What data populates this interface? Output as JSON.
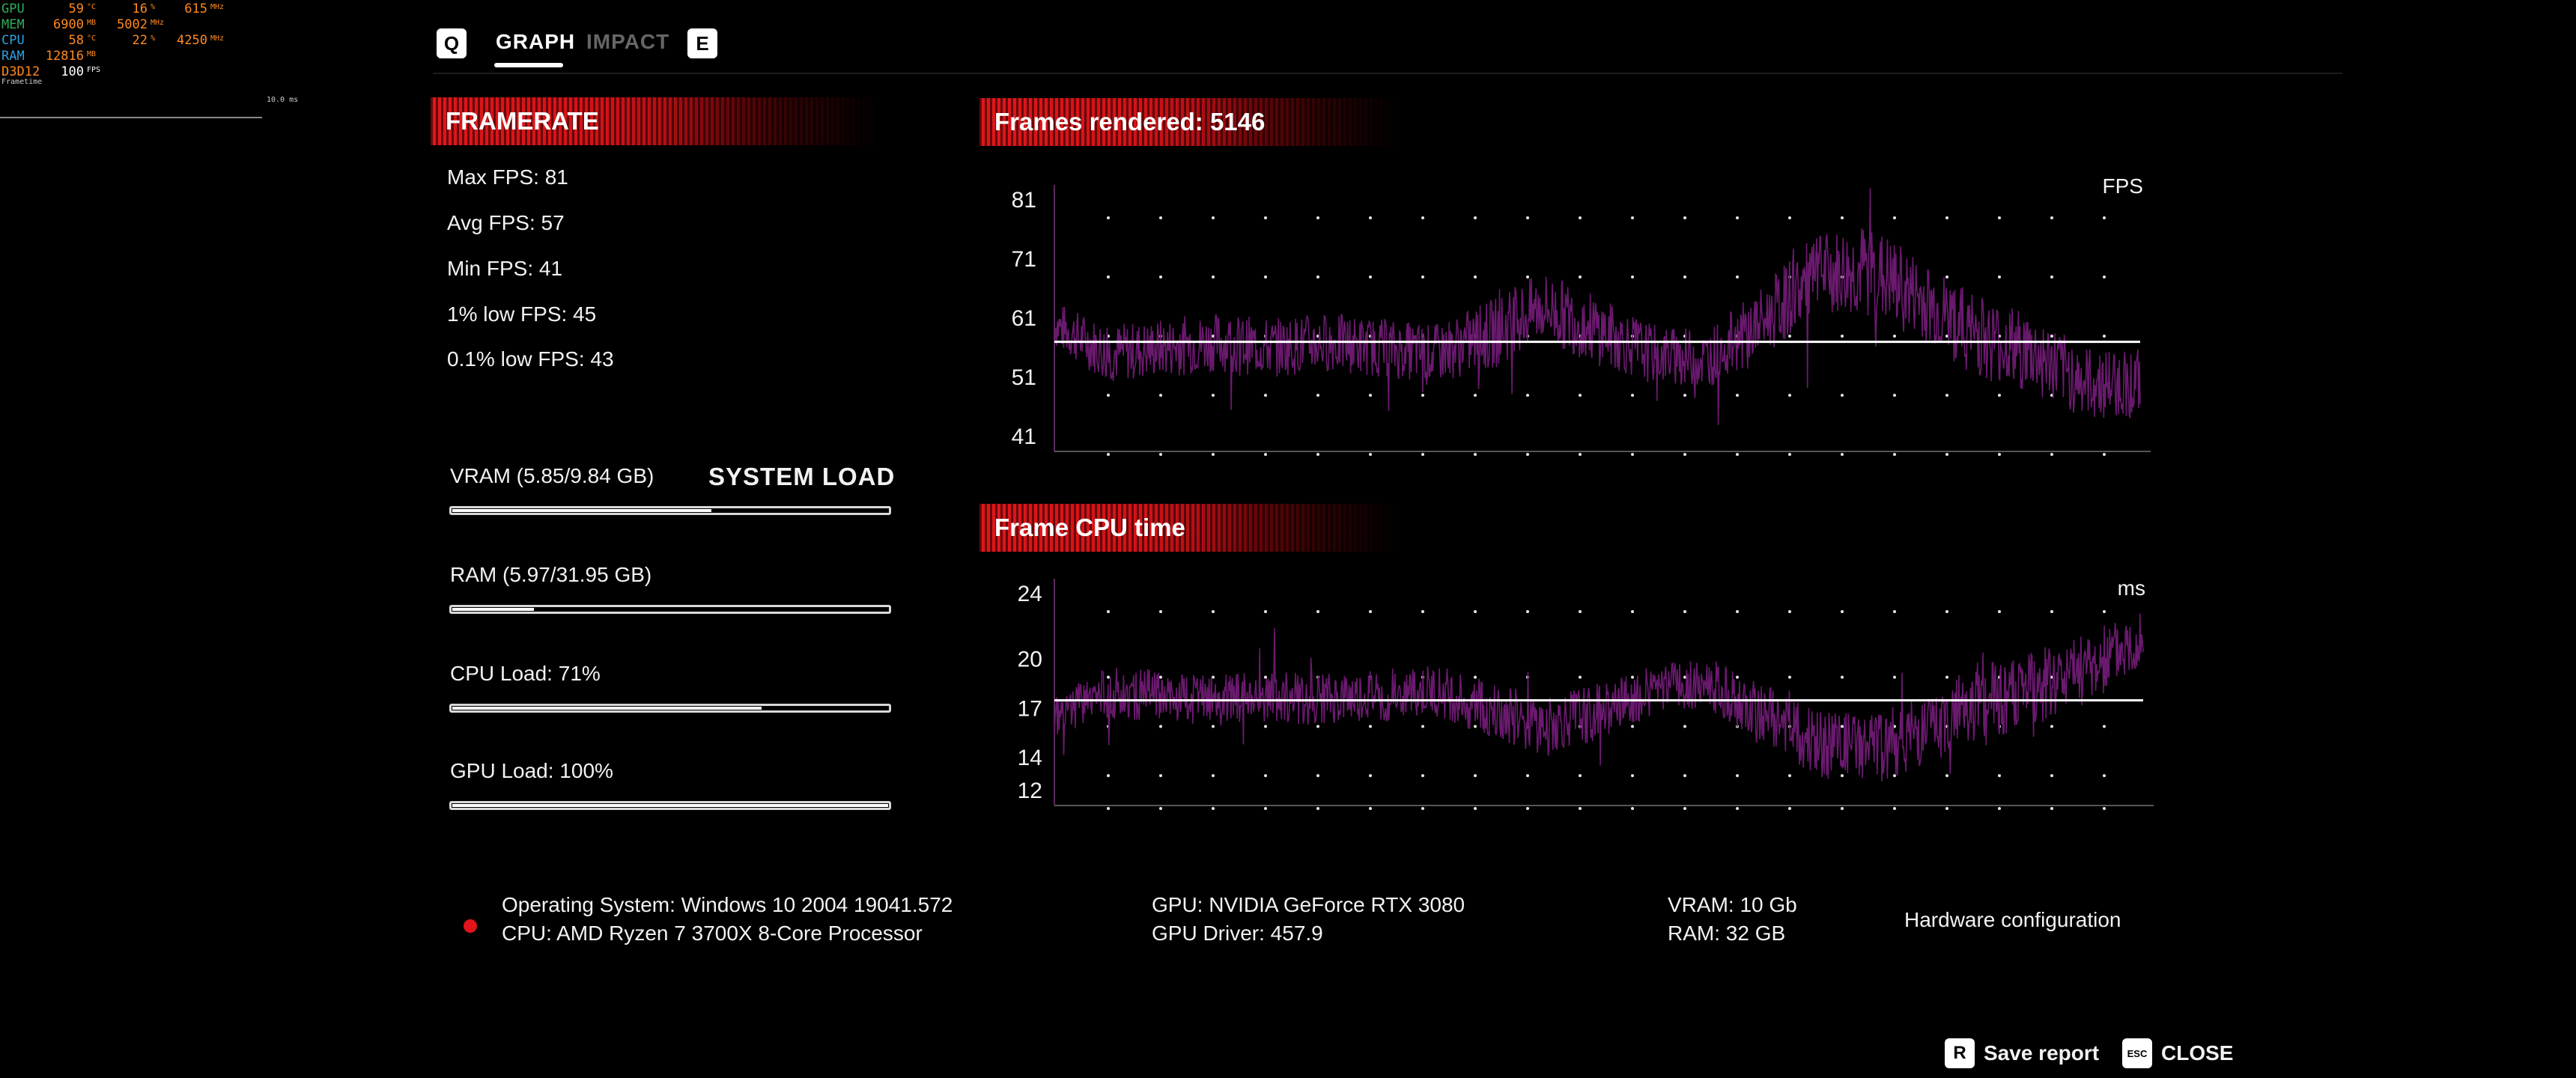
{
  "osd": {
    "rows": [
      {
        "label": "GPU",
        "label_color": "#2fae5c",
        "v1": "59",
        "u1": "°C",
        "v2": "16",
        "u2": "%",
        "v3": "615",
        "u3": "MHz"
      },
      {
        "label": "MEM",
        "label_color": "#2fae5c",
        "v1": "6900",
        "u1": "MB",
        "v2": "5002",
        "u2": "MHz",
        "v3": "",
        "u3": ""
      },
      {
        "label": "CPU",
        "label_color": "#2e9fe0",
        "v1": "58",
        "u1": "°C",
        "v2": "22",
        "u2": "%",
        "v3": "4250",
        "u3": "MHz"
      },
      {
        "label": "RAM",
        "label_color": "#2e9fe0",
        "v1": "12816",
        "u1": "MB",
        "v2": "",
        "u2": "",
        "v3": "",
        "u3": ""
      },
      {
        "label": "D3D12",
        "label_color": "#ff8a1e",
        "v1": "100",
        "u1": "FPS",
        "v2": "",
        "u2": "",
        "v3": "",
        "u3": ""
      }
    ],
    "frametime_label": "Frametime",
    "frametime_scale": "10.0 ms"
  },
  "tabs": {
    "prev_key": "Q",
    "next_key": "E",
    "items": [
      {
        "label": "GRAPH",
        "active": true
      },
      {
        "label": "IMPACT",
        "active": false
      }
    ]
  },
  "framerate": {
    "title": "FRAMERATE",
    "max": "Max FPS: 81",
    "avg": "Avg FPS: 57",
    "min": "Min FPS: 41",
    "low1": "1% low FPS: 45",
    "low01": "0.1% low FPS: 43"
  },
  "system_load": {
    "title": "SYSTEM LOAD",
    "bars": [
      {
        "label": "VRAM (5.85/9.84 GB)",
        "fraction": 0.595
      },
      {
        "label": "RAM (5.97/31.95 GB)",
        "fraction": 0.187
      },
      {
        "label": "CPU Load: 71%",
        "fraction": 0.71
      },
      {
        "label": "GPU Load: 100%",
        "fraction": 1.0
      }
    ]
  },
  "system_info": {
    "os": "Operating System: Windows 10 2004 19041.572",
    "cpu": "CPU: AMD Ryzen 7 3700X 8-Core Processor",
    "gpu": "GPU: NVIDIA GeForce RTX 3080",
    "gpu_driver": "GPU Driver: 457.9",
    "vram": "VRAM: 10 Gb",
    "ram": "RAM: 32 GB",
    "hardware_config": "Hardware configuration"
  },
  "actions": {
    "save_key": "R",
    "save_label": "Save report",
    "close_key": "ESC",
    "close_label": "CLOSE"
  },
  "colors": {
    "accent_red": "#e0161a",
    "plot_purple": "#6a1a6e"
  },
  "chart_data": [
    {
      "type": "line",
      "title": "Frames rendered: 5146",
      "ylabel": "FPS",
      "yticks": [
        81,
        71,
        61,
        51,
        41
      ],
      "ylim": [
        41,
        81
      ],
      "average": 57,
      "grid": "dotted",
      "x": [
        0,
        5,
        10,
        15,
        20,
        25,
        30,
        35,
        40,
        45,
        50,
        55,
        60,
        65,
        70,
        75,
        80,
        85,
        90,
        95,
        100
      ],
      "values": [
        60,
        55,
        56,
        57,
        56,
        57,
        56,
        55,
        58,
        63,
        59,
        55,
        54,
        60,
        68,
        69,
        64,
        58,
        55,
        50,
        50
      ],
      "spread": [
        4,
        5,
        5,
        5,
        5,
        5,
        5,
        5,
        6,
        6,
        6,
        5,
        5,
        6,
        7,
        8,
        7,
        7,
        7,
        6,
        6
      ]
    },
    {
      "type": "line",
      "title": "Frame CPU time",
      "ylabel": "ms",
      "yticks": [
        24,
        20,
        17,
        14,
        12
      ],
      "ylim": [
        12,
        24
      ],
      "average": 17.5,
      "grid": "dotted",
      "x": [
        0,
        5,
        10,
        15,
        20,
        25,
        30,
        35,
        40,
        45,
        50,
        55,
        60,
        65,
        70,
        75,
        80,
        85,
        90,
        95,
        100
      ],
      "values": [
        16.5,
        18,
        17.8,
        17.5,
        17.8,
        17.5,
        17.8,
        18,
        17,
        15.8,
        16.8,
        18.2,
        18.5,
        16.8,
        14.8,
        14.5,
        15.5,
        17.5,
        18.2,
        19.5,
        21.5
      ],
      "spread": [
        1.2,
        1.6,
        1.6,
        1.6,
        1.6,
        1.6,
        1.6,
        1.6,
        1.8,
        1.8,
        1.8,
        1.6,
        1.6,
        1.8,
        2,
        2.2,
        2.2,
        2.4,
        2.4,
        2.2,
        2
      ]
    }
  ]
}
